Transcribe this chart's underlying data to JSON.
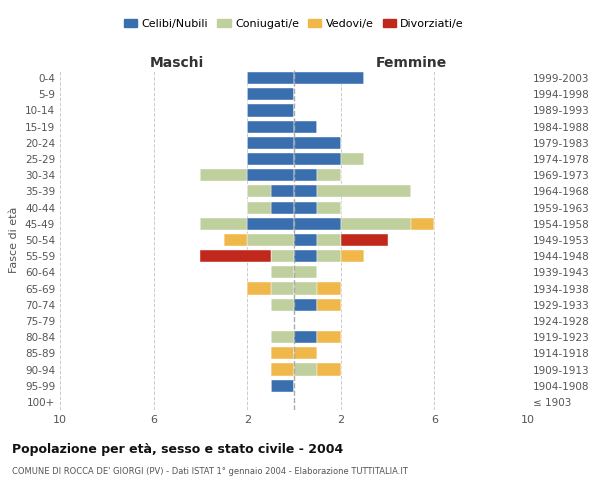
{
  "age_groups": [
    "100+",
    "95-99",
    "90-94",
    "85-89",
    "80-84",
    "75-79",
    "70-74",
    "65-69",
    "60-64",
    "55-59",
    "50-54",
    "45-49",
    "40-44",
    "35-39",
    "30-34",
    "25-29",
    "20-24",
    "15-19",
    "10-14",
    "5-9",
    "0-4"
  ],
  "birth_years": [
    "≤ 1903",
    "1904-1908",
    "1909-1913",
    "1914-1918",
    "1919-1923",
    "1924-1928",
    "1929-1933",
    "1934-1938",
    "1939-1943",
    "1944-1948",
    "1949-1953",
    "1954-1958",
    "1959-1963",
    "1964-1968",
    "1969-1973",
    "1974-1978",
    "1979-1983",
    "1984-1988",
    "1989-1993",
    "1994-1998",
    "1999-2003"
  ],
  "male": {
    "celibi": [
      0,
      1,
      0,
      0,
      0,
      0,
      0,
      0,
      0,
      0,
      0,
      2,
      1,
      1,
      2,
      2,
      2,
      2,
      2,
      2,
      2
    ],
    "coniugati": [
      0,
      0,
      0,
      0,
      1,
      0,
      1,
      1,
      1,
      1,
      2,
      2,
      1,
      1,
      2,
      0,
      0,
      0,
      0,
      0,
      0
    ],
    "vedovi": [
      0,
      0,
      1,
      1,
      0,
      0,
      0,
      1,
      0,
      0,
      1,
      0,
      0,
      0,
      0,
      0,
      0,
      0,
      0,
      0,
      0
    ],
    "divorziati": [
      0,
      0,
      0,
      0,
      0,
      0,
      0,
      0,
      0,
      3,
      0,
      0,
      0,
      0,
      0,
      0,
      0,
      0,
      0,
      0,
      0
    ]
  },
  "female": {
    "nubili": [
      0,
      0,
      0,
      0,
      1,
      0,
      1,
      0,
      0,
      1,
      1,
      2,
      1,
      1,
      1,
      2,
      2,
      1,
      0,
      0,
      3
    ],
    "coniugate": [
      0,
      0,
      1,
      0,
      0,
      0,
      0,
      1,
      1,
      1,
      1,
      3,
      1,
      4,
      1,
      1,
      0,
      0,
      0,
      0,
      0
    ],
    "vedove": [
      0,
      0,
      1,
      1,
      1,
      0,
      1,
      1,
      0,
      1,
      0,
      1,
      0,
      0,
      0,
      0,
      0,
      0,
      0,
      0,
      0
    ],
    "divorziate": [
      0,
      0,
      0,
      0,
      0,
      0,
      0,
      0,
      0,
      0,
      2,
      0,
      0,
      0,
      0,
      0,
      0,
      0,
      0,
      0,
      0
    ]
  },
  "colors": {
    "celibi_nubili": "#3a6faf",
    "coniugati": "#bfcf9e",
    "vedovi": "#f0b84a",
    "divorziati": "#c0281c"
  },
  "title": "Popolazione per età, sesso e stato civile - 2004",
  "subtitle": "COMUNE DI ROCCA DE' GIORGI (PV) - Dati ISTAT 1° gennaio 2004 - Elaborazione TUTTITALIA.IT",
  "xlabel_left": "Maschi",
  "xlabel_right": "Femmine",
  "ylabel_left": "Fasce di età",
  "xlim": 10,
  "background_color": "#ffffff",
  "grid_color": "#cccccc"
}
